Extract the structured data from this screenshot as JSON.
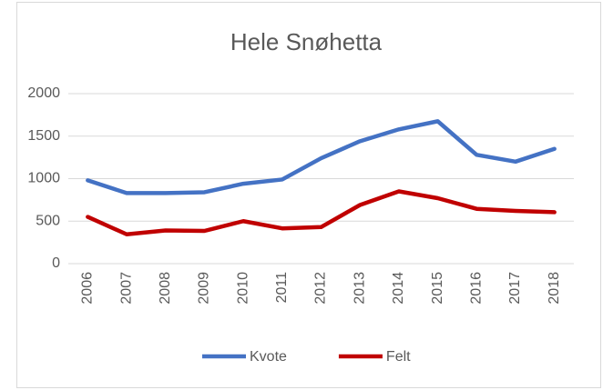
{
  "chart_data": {
    "type": "line",
    "title": "Hele Snøhetta",
    "categories": [
      "2006",
      "2007",
      "2008",
      "2009",
      "2010",
      "2011",
      "2012",
      "2013",
      "2014",
      "2015",
      "2016",
      "2017",
      "2018"
    ],
    "series": [
      {
        "name": "Kvote",
        "color": "#4472c4",
        "values": [
          980,
          830,
          830,
          840,
          940,
          990,
          1240,
          1440,
          1580,
          1675,
          1280,
          1200,
          1350
        ]
      },
      {
        "name": "Felt",
        "color": "#c00000",
        "values": [
          550,
          345,
          390,
          385,
          500,
          415,
          430,
          690,
          850,
          770,
          645,
          620,
          605
        ]
      }
    ],
    "ylim": [
      0,
      2000
    ],
    "yticks": [
      0,
      500,
      1000,
      1500,
      2000
    ],
    "grid": true,
    "legend": "bottom"
  }
}
